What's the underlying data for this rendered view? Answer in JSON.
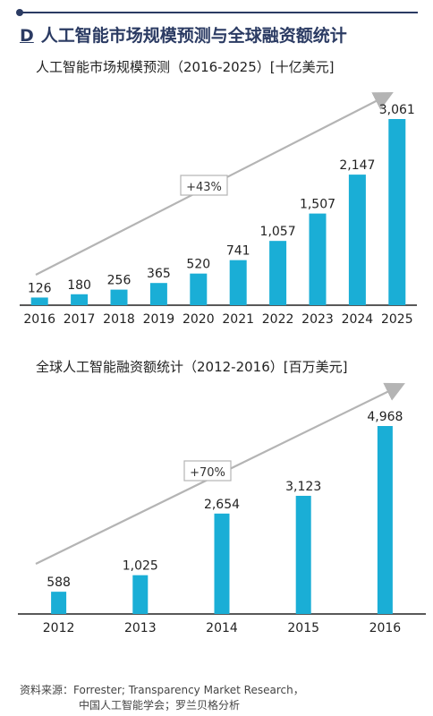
{
  "header": {
    "letter": "D",
    "title": "人工智能市场规模预测与全球融资额统计"
  },
  "colors": {
    "bar": "#1aaed6",
    "arrow": "#b4b4b4",
    "header": "#2b3b63"
  },
  "chart_data": [
    {
      "type": "bar",
      "title": "人工智能市场规模预测（2016-2025）[十亿美元]",
      "categories": [
        "2016",
        "2017",
        "2018",
        "2019",
        "2020",
        "2021",
        "2022",
        "2023",
        "2024",
        "2025"
      ],
      "values": [
        126,
        180,
        256,
        365,
        520,
        741,
        1057,
        1507,
        2147,
        3061
      ],
      "labels": [
        "126",
        "180",
        "256",
        "365",
        "520",
        "741",
        "1,057",
        "1,507",
        "2,147",
        "3,061"
      ],
      "annotation": "+43%",
      "xlabel": "",
      "ylabel": "",
      "ylim": [
        0,
        3061
      ],
      "grid": false
    },
    {
      "type": "bar",
      "title": "全球人工智能融资额统计（2012-2016）[百万美元]",
      "categories": [
        "2012",
        "2013",
        "2014",
        "2015",
        "2016"
      ],
      "values": [
        588,
        1025,
        2654,
        3123,
        4968
      ],
      "labels": [
        "588",
        "1,025",
        "2,654",
        "3,123",
        "4,968"
      ],
      "annotation": "+70%",
      "xlabel": "",
      "ylabel": "",
      "ylim": [
        0,
        4968
      ],
      "grid": false
    }
  ],
  "source": {
    "prefix": "资料来源：",
    "line1": "Forrester; Transparency Market Research，",
    "line2": "中国人工智能学会；罗兰贝格分析"
  }
}
